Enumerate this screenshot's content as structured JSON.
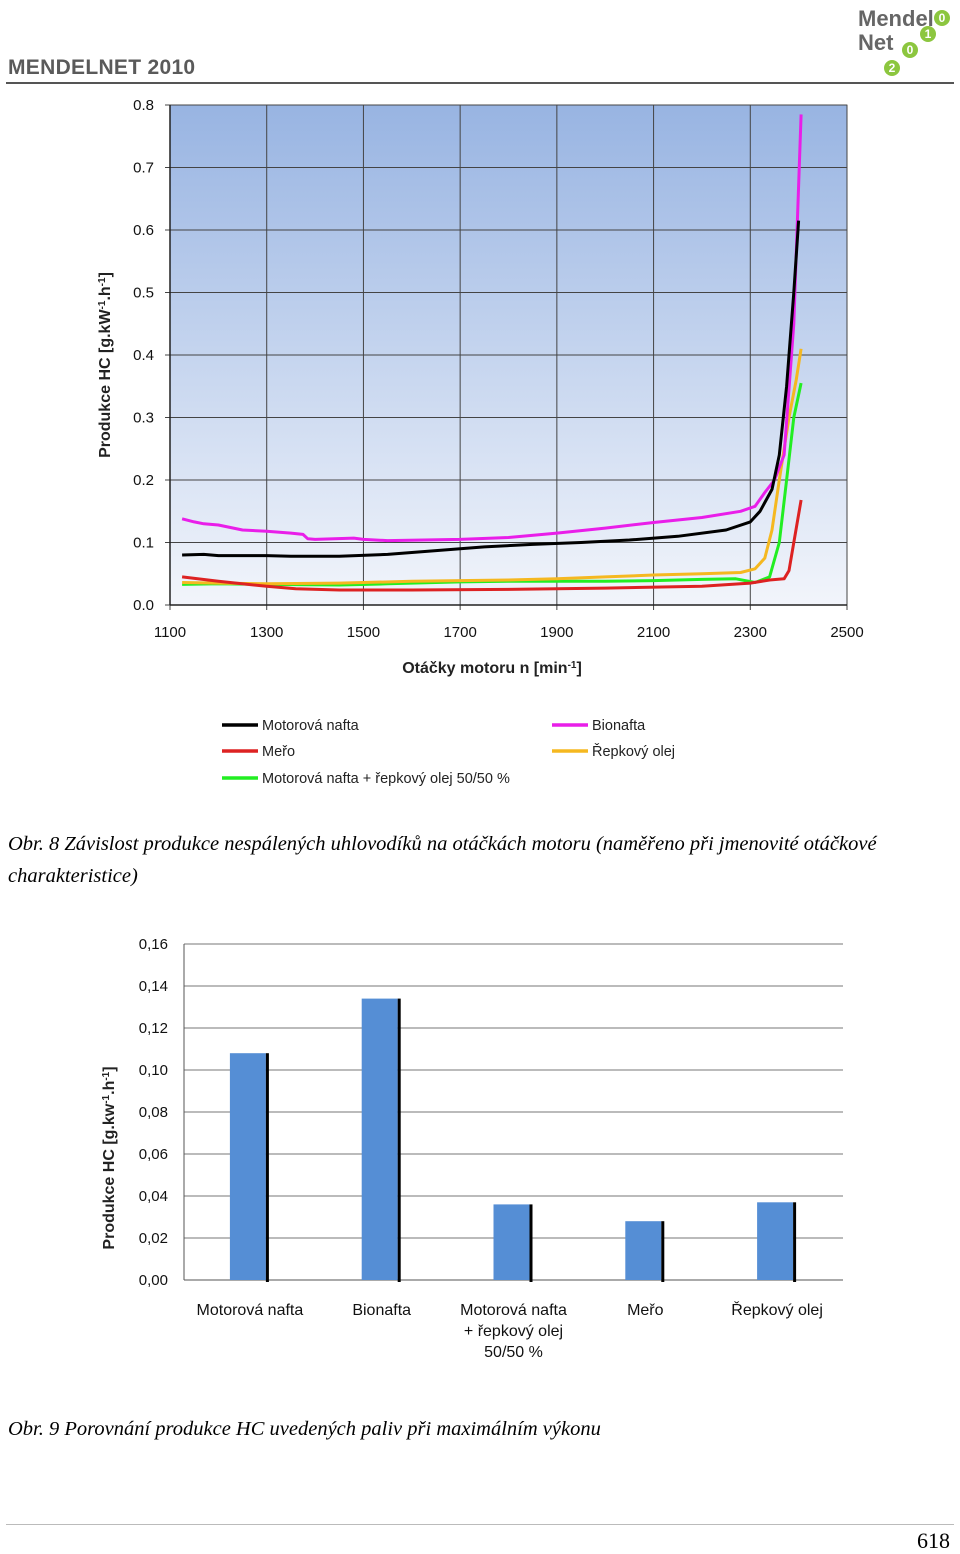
{
  "header": {
    "brand": "MENDELNET 2010",
    "logo_word1": "Mendel",
    "logo_word2": "Net",
    "logo_digits": [
      "0",
      "1",
      "0",
      "2"
    ]
  },
  "figure8": {
    "caption": "Obr. 8 Závislost produkce nespálených uhlovodíků na otáčkách motoru (naměřeno při jmenovité otáčkové charakteristice)"
  },
  "figure9": {
    "caption": "Obr. 9 Porovnání produkce HC uvedených paliv při maximálním výkonu"
  },
  "page_number": "618",
  "chart_data": [
    {
      "type": "line",
      "xlabel": "Otáčky motoru n [min-1]",
      "ylabel": "Produkce HC  [g.kW-1.h-1]",
      "xlim": [
        1100,
        2500
      ],
      "ylim": [
        0.0,
        0.8
      ],
      "xticks": [
        "1100",
        "1300",
        "1500",
        "1700",
        "1900",
        "2100",
        "2300",
        "2500"
      ],
      "yticks": [
        "0.0",
        "0.1",
        "0.2",
        "0.3",
        "0.4",
        "0.5",
        "0.6",
        "0.7",
        "0.8"
      ],
      "grid": true,
      "background": "gradient blue",
      "legend_position": "bottom",
      "series": [
        {
          "name": "Motorová nafta",
          "color": "#000000",
          "points": [
            [
              1125,
              0.08
            ],
            [
              1170,
              0.081
            ],
            [
              1200,
              0.079
            ],
            [
              1300,
              0.079
            ],
            [
              1350,
              0.078
            ],
            [
              1450,
              0.078
            ],
            [
              1550,
              0.081
            ],
            [
              1650,
              0.087
            ],
            [
              1750,
              0.093
            ],
            [
              1850,
              0.097
            ],
            [
              1950,
              0.1
            ],
            [
              2050,
              0.104
            ],
            [
              2150,
              0.11
            ],
            [
              2250,
              0.12
            ],
            [
              2300,
              0.133
            ],
            [
              2320,
              0.15
            ],
            [
              2345,
              0.185
            ],
            [
              2360,
              0.24
            ],
            [
              2375,
              0.35
            ],
            [
              2390,
              0.5
            ],
            [
              2400,
              0.615
            ]
          ]
        },
        {
          "name": "Bionafta",
          "color": "#e91ee9",
          "points": [
            [
              1125,
              0.138
            ],
            [
              1150,
              0.133
            ],
            [
              1170,
              0.13
            ],
            [
              1200,
              0.128
            ],
            [
              1250,
              0.12
            ],
            [
              1300,
              0.118
            ],
            [
              1350,
              0.115
            ],
            [
              1375,
              0.113
            ],
            [
              1385,
              0.106
            ],
            [
              1400,
              0.105
            ],
            [
              1480,
              0.107
            ],
            [
              1500,
              0.105
            ],
            [
              1550,
              0.103
            ],
            [
              1700,
              0.105
            ],
            [
              1800,
              0.108
            ],
            [
              1900,
              0.115
            ],
            [
              2000,
              0.123
            ],
            [
              2100,
              0.132
            ],
            [
              2200,
              0.14
            ],
            [
              2280,
              0.15
            ],
            [
              2310,
              0.158
            ],
            [
              2330,
              0.18
            ],
            [
              2350,
              0.2
            ],
            [
              2370,
              0.24
            ],
            [
              2390,
              0.45
            ],
            [
              2405,
              0.785
            ]
          ]
        },
        {
          "name": "Meřo",
          "color": "#dd2222",
          "points": [
            [
              1125,
              0.045
            ],
            [
              1200,
              0.038
            ],
            [
              1300,
              0.03
            ],
            [
              1360,
              0.026
            ],
            [
              1450,
              0.024
            ],
            [
              1600,
              0.024
            ],
            [
              1800,
              0.025
            ],
            [
              2000,
              0.027
            ],
            [
              2200,
              0.03
            ],
            [
              2300,
              0.035
            ],
            [
              2340,
              0.04
            ],
            [
              2370,
              0.042
            ],
            [
              2380,
              0.055
            ],
            [
              2390,
              0.1
            ],
            [
              2405,
              0.168
            ]
          ]
        },
        {
          "name": "Řepkový olej",
          "color": "#f5b820",
          "points": [
            [
              1125,
              0.036
            ],
            [
              1200,
              0.035
            ],
            [
              1300,
              0.034
            ],
            [
              1450,
              0.035
            ],
            [
              1600,
              0.038
            ],
            [
              1800,
              0.04
            ],
            [
              1900,
              0.042
            ],
            [
              2000,
              0.045
            ],
            [
              2100,
              0.048
            ],
            [
              2200,
              0.05
            ],
            [
              2280,
              0.052
            ],
            [
              2310,
              0.058
            ],
            [
              2330,
              0.075
            ],
            [
              2345,
              0.12
            ],
            [
              2360,
              0.2
            ],
            [
              2380,
              0.3
            ],
            [
              2395,
              0.36
            ],
            [
              2405,
              0.41
            ]
          ]
        },
        {
          "name": "Motorová nafta + řepkový olej 50/50 %",
          "color": "#22ee22",
          "points": [
            [
              1125,
              0.033
            ],
            [
              1200,
              0.034
            ],
            [
              1300,
              0.033
            ],
            [
              1450,
              0.032
            ],
            [
              1550,
              0.034
            ],
            [
              1700,
              0.037
            ],
            [
              1800,
              0.038
            ],
            [
              1900,
              0.038
            ],
            [
              2000,
              0.038
            ],
            [
              2100,
              0.039
            ],
            [
              2200,
              0.041
            ],
            [
              2270,
              0.042
            ],
            [
              2310,
              0.036
            ],
            [
              2340,
              0.045
            ],
            [
              2360,
              0.1
            ],
            [
              2375,
              0.2
            ],
            [
              2390,
              0.3
            ],
            [
              2405,
              0.355
            ]
          ]
        }
      ]
    },
    {
      "type": "bar",
      "ylabel": "Produkce HC [g.kw-1.h-1]",
      "ylim": [
        0.0,
        0.16
      ],
      "yticks": [
        "0,00",
        "0,02",
        "0,04",
        "0,06",
        "0,08",
        "0,10",
        "0,12",
        "0,14",
        "0,16"
      ],
      "grid": true,
      "categories": [
        "Motorová nafta",
        "Bionafta",
        "Motorová nafta + řepkový olej 50/50 %",
        "Meřo",
        "Řepkový olej"
      ],
      "category_labels": [
        [
          "Motorová nafta"
        ],
        [
          "Bionafta"
        ],
        [
          "Motorová nafta",
          "+ řepkový olej",
          "50/50 %"
        ],
        [
          "Meřo"
        ],
        [
          "Řepkový olej"
        ]
      ],
      "values": [
        0.108,
        0.134,
        0.036,
        0.028,
        0.037
      ],
      "bar_color": "#558ed5"
    }
  ]
}
